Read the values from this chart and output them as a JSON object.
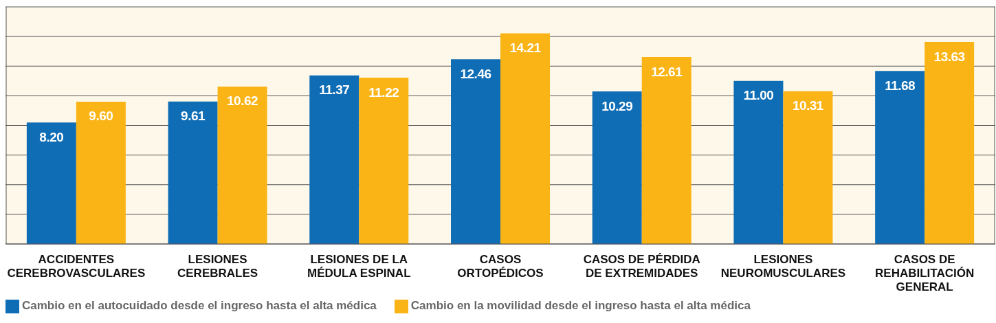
{
  "chart_data": {
    "type": "bar",
    "categories": [
      "ACCIDENTES CEREBROVASCULARES",
      "LESIONES CEREBRALES",
      "LESIONES DE LA MÉDULA ESPINAL",
      "CASOS ORTOPÉDICOS",
      "CASOS DE PÉRDIDA DE EXTREMIDADES",
      "LESIONES NEUROMUSCULARES",
      "CASOS DE REHABILITACIÓN GENERAL"
    ],
    "series": [
      {
        "name": "Cambio en el autocuidado desde el ingreso hasta el alta médica",
        "color": "#0f6db5",
        "values": [
          8.2,
          9.61,
          11.37,
          12.46,
          10.29,
          11.0,
          11.68
        ],
        "value_labels": [
          "8.20",
          "9.61",
          "11.37",
          "12.46",
          "10.29",
          "11.00",
          "11.68"
        ]
      },
      {
        "name": "Cambio en la movilidad desde el ingreso hasta el alta médica",
        "color": "#fbb415",
        "values": [
          9.6,
          10.62,
          11.22,
          14.21,
          12.61,
          10.31,
          13.63
        ],
        "value_labels": [
          "9.60",
          "10.62",
          "11.22",
          "14.21",
          "12.61",
          "10.31",
          "13.63"
        ]
      }
    ],
    "ylim": [
      0,
      16
    ],
    "tick_labels": "x",
    "grid": "y",
    "legend": "bottom left"
  }
}
